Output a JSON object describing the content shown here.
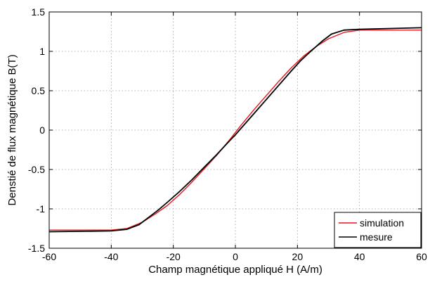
{
  "chart_data": {
    "type": "line",
    "xlabel": "Champ magnétique appliqué H (A/m)",
    "ylabel": "Denstié de flux magnétique B(T)",
    "xlim": [
      -60,
      60
    ],
    "ylim": [
      -1.5,
      1.5
    ],
    "xticks": [
      -60,
      -40,
      -20,
      0,
      20,
      40,
      60
    ],
    "yticks": [
      -1.5,
      -1,
      -0.5,
      0,
      0.5,
      1,
      1.5
    ],
    "xtick_labels": [
      "-60",
      "-40",
      "-20",
      "0",
      "20",
      "40",
      "60"
    ],
    "ytick_labels": [
      "-1.5",
      "-1",
      "-0.5",
      "0",
      "0.5",
      "1",
      "1.5"
    ],
    "grid": true,
    "legend_position": "bottom-right",
    "series": [
      {
        "name": "simulation",
        "color": "#e8141c",
        "x": [
          -60,
          -40,
          -35,
          -30,
          -26,
          -22,
          -18,
          -14,
          -10,
          -6,
          -2,
          0,
          2,
          6,
          10,
          14,
          18,
          22,
          26,
          30,
          35,
          40,
          60
        ],
        "y": [
          -1.27,
          -1.27,
          -1.25,
          -1.17,
          -1.07,
          -0.96,
          -0.82,
          -0.66,
          -0.49,
          -0.32,
          -0.13,
          -0.03,
          0.07,
          0.26,
          0.44,
          0.62,
          0.79,
          0.94,
          1.06,
          1.16,
          1.24,
          1.27,
          1.27
        ]
      },
      {
        "name": "mesure",
        "color": "#000000",
        "x": [
          -60,
          -40,
          -35,
          -31,
          -28,
          -25,
          -22,
          -18,
          -14,
          -10,
          -6,
          -2,
          0,
          2,
          6,
          10,
          14,
          18,
          21,
          24,
          28,
          31,
          35,
          40,
          60
        ],
        "y": [
          -1.29,
          -1.28,
          -1.26,
          -1.2,
          -1.11,
          -1.02,
          -0.92,
          -0.78,
          -0.63,
          -0.47,
          -0.31,
          -0.14,
          -0.06,
          0.03,
          0.21,
          0.39,
          0.57,
          0.75,
          0.88,
          0.99,
          1.13,
          1.22,
          1.27,
          1.28,
          1.3
        ]
      }
    ]
  }
}
